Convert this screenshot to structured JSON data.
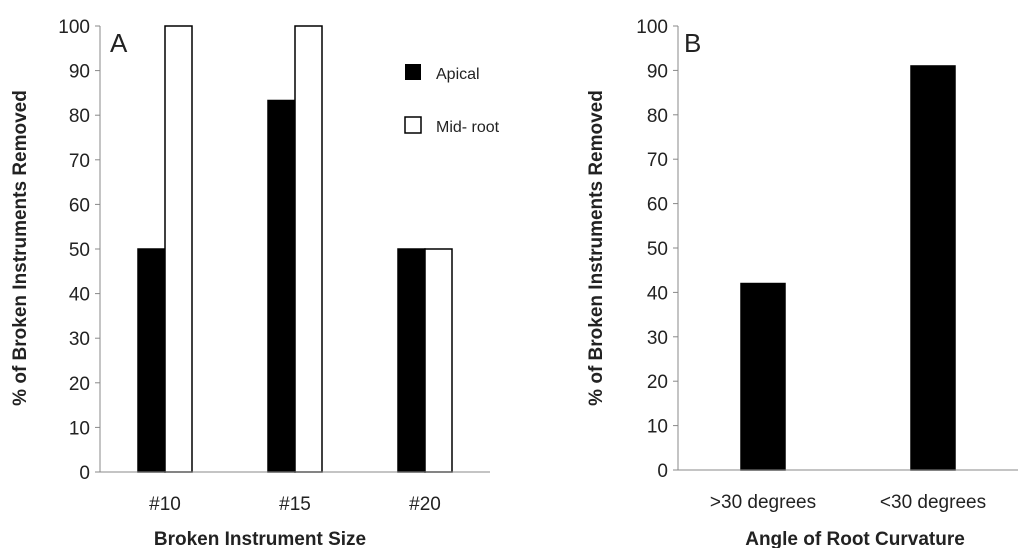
{
  "chart_data": [
    {
      "type": "bar",
      "panel_label": "A",
      "title": "",
      "xlabel": "Broken Instrument Size",
      "ylabel": "% of Broken Instruments Removed",
      "categories": [
        "#10",
        "#15",
        "#20"
      ],
      "series": [
        {
          "name": "Apical",
          "values": [
            50,
            83.3,
            50
          ],
          "color": "#000000"
        },
        {
          "name": "Mid- root",
          "values": [
            100,
            100,
            50
          ],
          "color": "#ffffff"
        }
      ],
      "ylim": [
        0,
        100
      ],
      "yticks": [
        0,
        10,
        20,
        30,
        40,
        50,
        60,
        70,
        80,
        90,
        100
      ],
      "grid": false,
      "legend_position": "top-right"
    },
    {
      "type": "bar",
      "panel_label": "B",
      "title": "",
      "xlabel": "Angle of Root Curvature",
      "ylabel": "% of Broken Instruments Removed",
      "categories": [
        ">30 degrees",
        "<30 degrees"
      ],
      "series": [
        {
          "values": [
            42,
            91
          ],
          "color": "#000000"
        }
      ],
      "ylim": [
        0,
        100
      ],
      "yticks": [
        0,
        10,
        20,
        30,
        40,
        50,
        60,
        70,
        80,
        90,
        100
      ],
      "grid": false
    }
  ]
}
